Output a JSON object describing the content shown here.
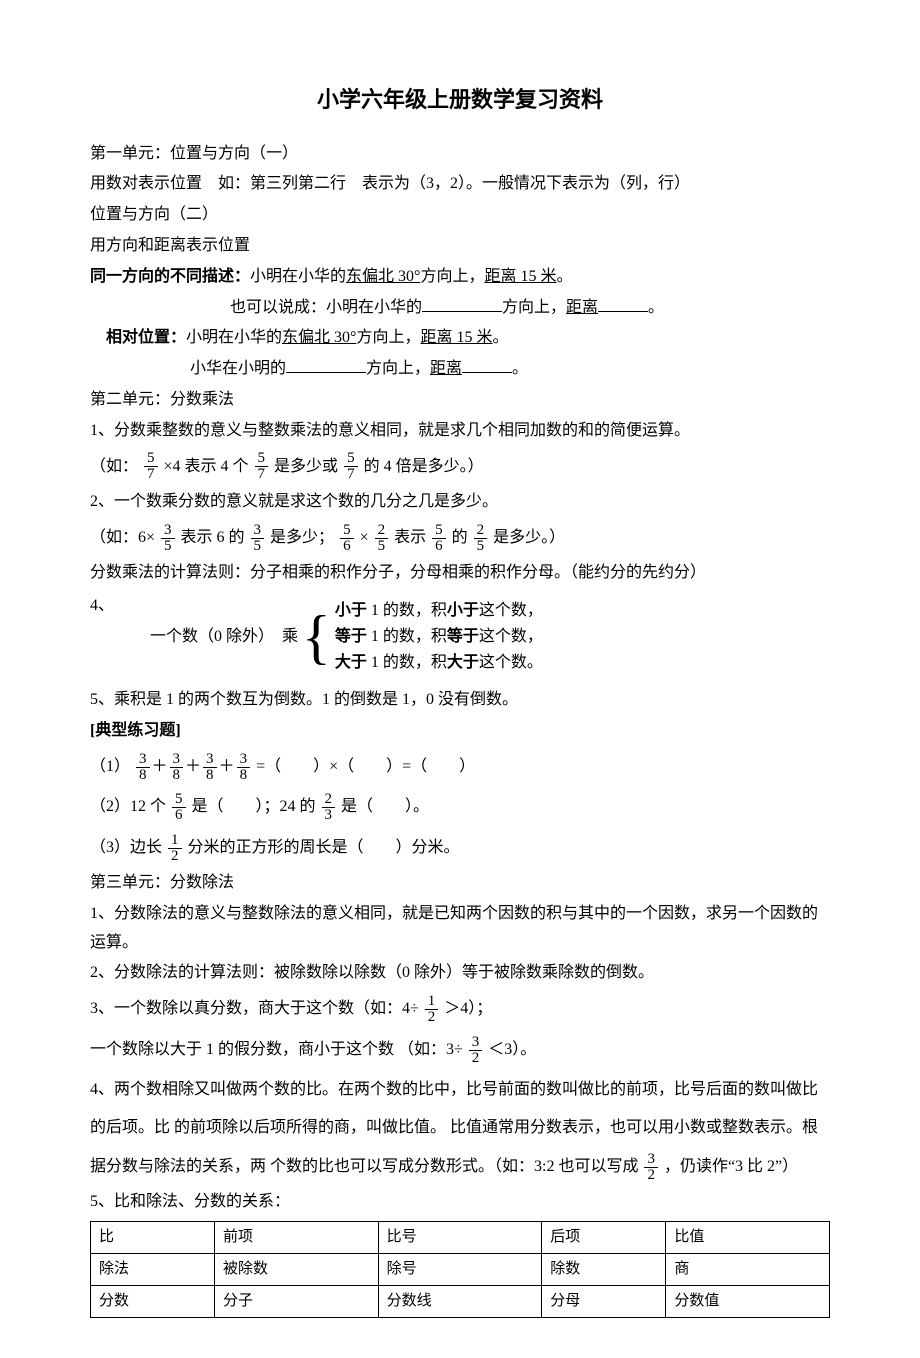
{
  "title": "小学六年级上册数学复习资料",
  "unit1": {
    "heading": "第一单元：位置与方向（一）",
    "pair_intro": "用数对表示位置　如：第三列第二行　表示为（3，2）。一般情况下表示为（列，行）",
    "sub_heading": "位置与方向（二）",
    "dir_dist": "用方向和距离表示位置",
    "same_dir_label": "同一方向的不同描述：",
    "same_dir_text": "小明在小华的",
    "underline_dir": "东偏北 30°",
    "dir_suffix": "方向上，",
    "underline_dist": "距离 15 米",
    "period": "。",
    "also": "也可以说成：小明在小华的",
    "dir_word": "方向上，",
    "dist_word": "距离",
    "rel_label": "相对位置：",
    "rel_text": "小明在小华的",
    "rel_line2_pre": "小华在小明的"
  },
  "unit2": {
    "heading": "第二单元：分数乘法",
    "p1": "1、分数乘整数的意义与整数乘法的意义相同，就是求几个相同加数的和的简便运算。",
    "eg1_pre": "（如：",
    "eg1_mid1": "×4 表示 4 个",
    "eg1_mid2": "是多少或",
    "eg1_end": "的 4 倍是多少。）",
    "p2": "2、一个数乘分数的意义就是求这个数的几分之几是多少。",
    "eg2_pre": "（如：6×",
    "eg2_mid1": "表示 6 的",
    "eg2_mid2": "是多少；",
    "eg2_mid3": "×",
    "eg2_mid4": "表示",
    "eg2_mid5": "的",
    "eg2_end": "是多少。）",
    "rule": "分数乘法的计算法则：分子相乘的积作分子，分母相乘的积作分母。（能约分的先约分）",
    "p4_label": "4、",
    "p4_left": "一个数（0 除外）　乘",
    "p4_lt_a": "小于",
    "p4_lt_b": "1 的数，积",
    "p4_lt_c": "小于",
    "p4_lt_d": "这个数，",
    "p4_eq_a": "等于",
    "p4_eq_b": "1 的数，积",
    "p4_eq_c": "等于",
    "p4_eq_d": "这个数，",
    "p4_gt_a": "大于",
    "p4_gt_b": "1 的数，积",
    "p4_gt_c": "大于",
    "p4_gt_d": "这个数。",
    "p5": "5、乘积是 1 的两个数互为倒数。1 的倒数是 1，0 没有倒数。",
    "ex_head": "[典型练习题]",
    "ex1_pre": "（1）",
    "ex1_plus": "＋",
    "ex1_eq": " =（　　）×（　　）=（　　）",
    "ex2_pre": "（2）12 个",
    "ex2_mid": "是（　　）；24 的",
    "ex2_end": "是（　　）。",
    "ex3_pre": "（3）边长",
    "ex3_end": "分米的正方形的周长是（　　）分米。"
  },
  "unit3": {
    "heading": "第三单元：分数除法",
    "p1": "1、分数除法的意义与整数除法的意义相同，就是已知两个因数的积与其中的一个因数，求另一个因数的运算。",
    "p2": "2、分数除法的计算法则：被除数除以除数（0 除外）等于被除数乘除数的倒数。",
    "p3_pre": "3、一个数除以真分数，商大于这个数（如：4÷",
    "p3_end": "＞4）；",
    "p3b_pre": "一个数除以大于 1 的假分数，商小于这个数 （如：3÷",
    "p3b_end": "＜3）。",
    "p4_a": "4、两个数相除又叫做两个数的比。在两个数的比中，比号前面的数叫做比的前项，比号后面的数叫做比的后项。比 的前项除以后项所得的商，叫做比值。 比值通常用分数表示，也可以用小数或整数表示。根据分数与除法的关系，两 个数的比也可以写成分数形式。（如：3:2 也可以写成",
    "p4_b": "，仍读作“3 比 2”）",
    "p5": "5、比和除法、分数的关系：",
    "table": {
      "rows": [
        [
          "比",
          "前项",
          "比号",
          "后项",
          "比值"
        ],
        [
          "除法",
          "被除数",
          "除号",
          "除数",
          "商"
        ],
        [
          "分数",
          "分子",
          "分数线",
          "分母",
          "分数值"
        ]
      ]
    }
  },
  "fracs": {
    "f57": {
      "n": "5",
      "d": "7"
    },
    "f35": {
      "n": "3",
      "d": "5"
    },
    "f56": {
      "n": "5",
      "d": "6"
    },
    "f25": {
      "n": "2",
      "d": "5"
    },
    "f38": {
      "n": "3",
      "d": "8"
    },
    "f23": {
      "n": "2",
      "d": "3"
    },
    "f12": {
      "n": "1",
      "d": "2"
    },
    "f32": {
      "n": "3",
      "d": "2"
    }
  }
}
